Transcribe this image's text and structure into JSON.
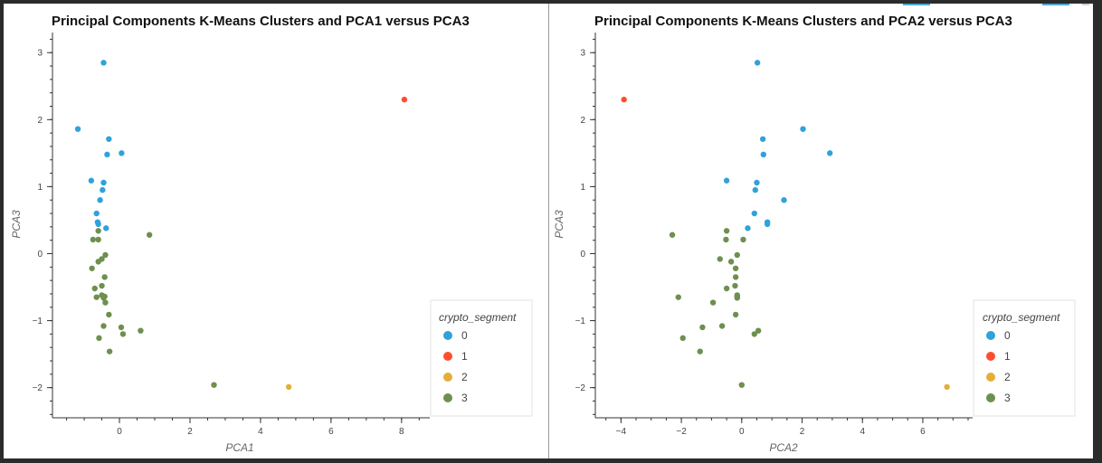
{
  "colors": {
    "0": "#30a2da",
    "1": "#fc4f30",
    "2": "#e5ae38",
    "3": "#6d904f"
  },
  "chart_data": [
    {
      "type": "scatter",
      "title": "Principal Components K-Means Clusters and PCA1 versus PCA3",
      "xlabel": "PCA1",
      "ylabel": "PCA3",
      "xlim": [
        -1.9,
        8.8
      ],
      "ylim": [
        -2.45,
        3.3
      ],
      "xticks": [
        0,
        2,
        4,
        6,
        8
      ],
      "yticks": [
        -2,
        -1,
        0,
        1,
        2,
        3
      ],
      "legend_title": "crypto_segment",
      "legend_labels": [
        "0",
        "1",
        "2",
        "3"
      ],
      "legend_position": "right",
      "series": [
        {
          "name": "0",
          "points": [
            [
              -0.45,
              2.85
            ],
            [
              -1.18,
              1.86
            ],
            [
              -0.3,
              1.71
            ],
            [
              0.06,
              1.5
            ],
            [
              -0.35,
              1.48
            ],
            [
              -0.8,
              1.09
            ],
            [
              -0.45,
              1.06
            ],
            [
              -0.48,
              0.95
            ],
            [
              -0.55,
              0.8
            ],
            [
              -0.65,
              0.6
            ],
            [
              -0.62,
              0.47
            ],
            [
              -0.6,
              0.44
            ],
            [
              -0.38,
              0.38
            ]
          ]
        },
        {
          "name": "1",
          "points": [
            [
              8.08,
              2.3
            ]
          ]
        },
        {
          "name": "2",
          "points": [
            [
              4.8,
              -1.99
            ]
          ]
        },
        {
          "name": "3",
          "points": [
            [
              -0.6,
              0.34
            ],
            [
              0.85,
              0.28
            ],
            [
              -0.75,
              0.21
            ],
            [
              -0.6,
              0.21
            ],
            [
              -0.4,
              -0.02
            ],
            [
              -0.5,
              -0.08
            ],
            [
              -0.6,
              -0.12
            ],
            [
              -0.78,
              -0.22
            ],
            [
              -0.42,
              -0.35
            ],
            [
              -0.5,
              -0.48
            ],
            [
              -0.7,
              -0.52
            ],
            [
              -0.5,
              -0.62
            ],
            [
              -0.42,
              -0.64
            ],
            [
              -0.65,
              -0.65
            ],
            [
              -0.45,
              -0.66
            ],
            [
              -0.4,
              -0.73
            ],
            [
              -0.3,
              -0.91
            ],
            [
              -0.45,
              -1.08
            ],
            [
              0.05,
              -1.1
            ],
            [
              0.1,
              -1.2
            ],
            [
              0.6,
              -1.15
            ],
            [
              -0.58,
              -1.26
            ],
            [
              -0.28,
              -1.46
            ],
            [
              2.68,
              -1.96
            ]
          ]
        }
      ]
    },
    {
      "type": "scatter",
      "title": "Principal Components K-Means Clusters and PCA2 versus PCA3",
      "xlabel": "PCA2",
      "ylabel": "PCA3",
      "xlim": [
        -4.85,
        7.65
      ],
      "ylim": [
        -2.45,
        3.3
      ],
      "xticks": [
        -4,
        -2,
        0,
        2,
        4,
        6
      ],
      "yticks": [
        -2,
        -1,
        0,
        1,
        2,
        3
      ],
      "legend_title": "crypto_segment",
      "legend_labels": [
        "0",
        "1",
        "2",
        "3"
      ],
      "legend_position": "right",
      "series": [
        {
          "name": "0",
          "points": [
            [
              0.52,
              2.85
            ],
            [
              2.03,
              1.86
            ],
            [
              0.7,
              1.71
            ],
            [
              2.92,
              1.5
            ],
            [
              0.72,
              1.48
            ],
            [
              -0.5,
              1.09
            ],
            [
              0.5,
              1.06
            ],
            [
              0.45,
              0.95
            ],
            [
              1.4,
              0.8
            ],
            [
              0.42,
              0.6
            ],
            [
              0.85,
              0.47
            ],
            [
              0.85,
              0.44
            ],
            [
              0.2,
              0.38
            ]
          ]
        },
        {
          "name": "1",
          "points": [
            [
              -3.9,
              2.3
            ]
          ]
        },
        {
          "name": "2",
          "points": [
            [
              6.8,
              -1.99
            ]
          ]
        },
        {
          "name": "3",
          "points": [
            [
              -0.5,
              0.34
            ],
            [
              -2.3,
              0.28
            ],
            [
              -0.52,
              0.21
            ],
            [
              0.05,
              0.21
            ],
            [
              -0.15,
              -0.02
            ],
            [
              -0.72,
              -0.08
            ],
            [
              -0.35,
              -0.12
            ],
            [
              -0.2,
              -0.22
            ],
            [
              -0.2,
              -0.35
            ],
            [
              -0.22,
              -0.48
            ],
            [
              -0.5,
              -0.52
            ],
            [
              -0.15,
              -0.62
            ],
            [
              -0.15,
              -0.64
            ],
            [
              -2.1,
              -0.65
            ],
            [
              -0.15,
              -0.66
            ],
            [
              -0.95,
              -0.73
            ],
            [
              -0.2,
              -0.91
            ],
            [
              -0.65,
              -1.08
            ],
            [
              -1.3,
              -1.1
            ],
            [
              0.55,
              -1.15
            ],
            [
              0.42,
              -1.2
            ],
            [
              -1.95,
              -1.26
            ],
            [
              -1.38,
              -1.46
            ],
            [
              0.0,
              -1.96
            ]
          ]
        }
      ]
    }
  ]
}
